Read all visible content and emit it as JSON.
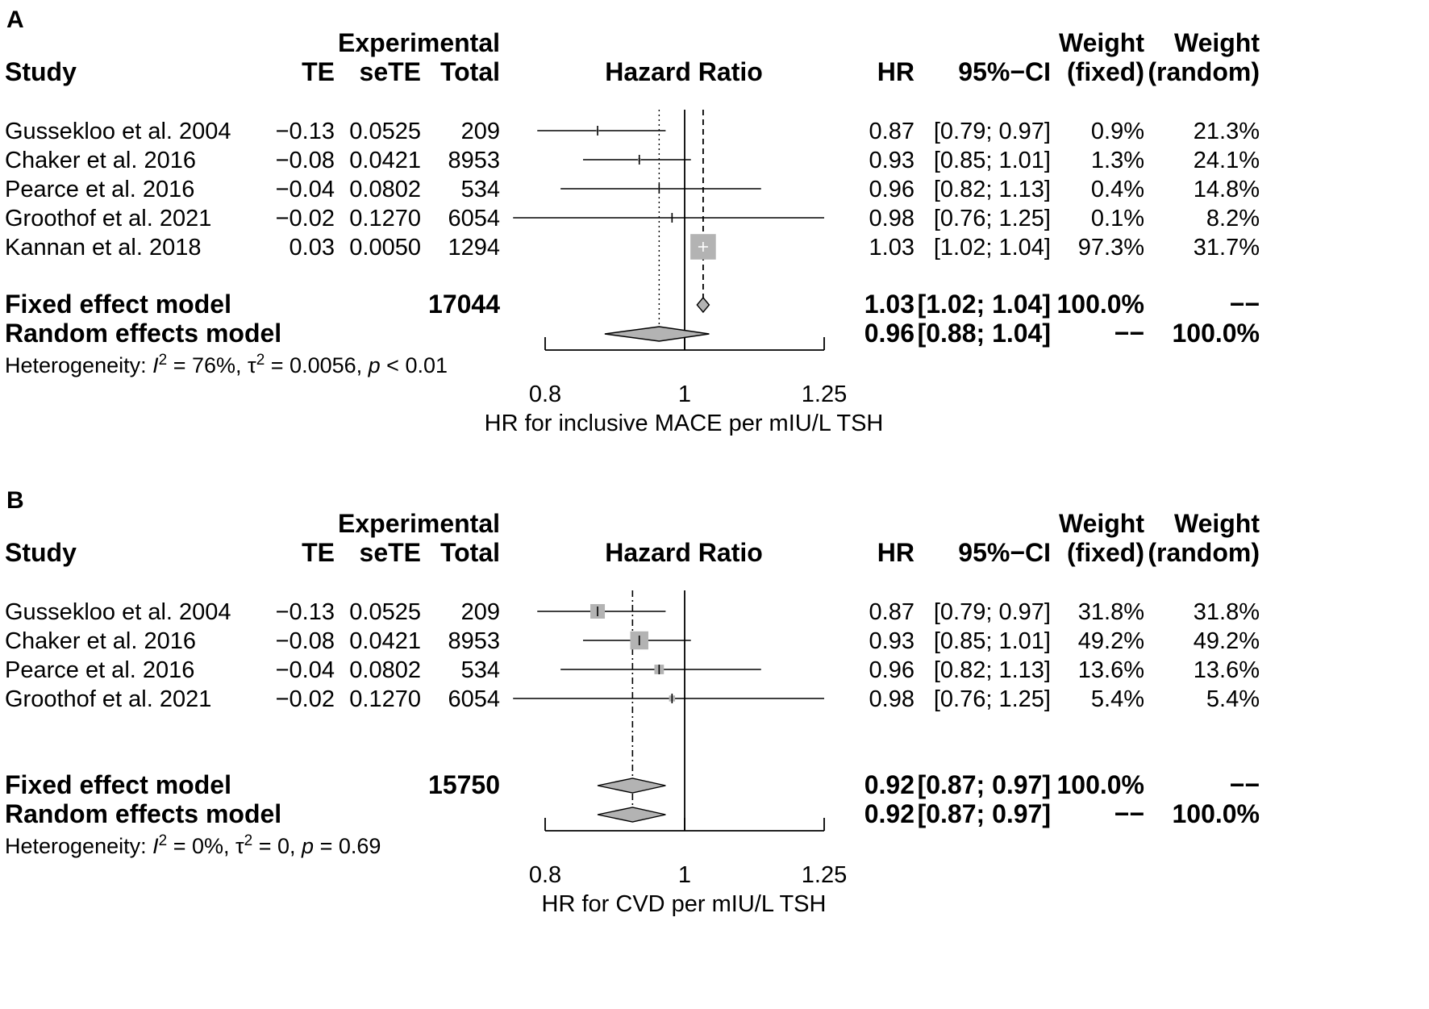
{
  "chart_data": [
    {
      "type": "forest",
      "panel": "A",
      "columns": {
        "study": "Study",
        "te": "TE",
        "sete": "seTE",
        "group": "Experimental",
        "total": "Total",
        "plot": "Hazard Ratio",
        "hr": "HR",
        "ci": "95%−CI",
        "weight_top": "Weight",
        "weight_fixed": "(fixed)",
        "weight_random": "(random)"
      },
      "studies": [
        {
          "name": "Gussekloo et al. 2004",
          "te": "−0.13",
          "sete": "0.0525",
          "total": "209",
          "hr_text": "0.87",
          "ci_text": "[0.79; 0.97]",
          "w_fixed": "0.9%",
          "w_random": "21.3%",
          "hr": 0.87,
          "lo": 0.79,
          "hi": 0.97,
          "weight": 0.009
        },
        {
          "name": "Chaker et al. 2016",
          "te": "−0.08",
          "sete": "0.0421",
          "total": "8953",
          "hr_text": "0.93",
          "ci_text": "[0.85; 1.01]",
          "w_fixed": "1.3%",
          "w_random": "24.1%",
          "hr": 0.93,
          "lo": 0.85,
          "hi": 1.01,
          "weight": 0.013
        },
        {
          "name": "Pearce et al. 2016",
          "te": "−0.04",
          "sete": "0.0802",
          "total": "534",
          "hr_text": "0.96",
          "ci_text": "[0.82; 1.13]",
          "w_fixed": "0.4%",
          "w_random": "14.8%",
          "hr": 0.96,
          "lo": 0.82,
          "hi": 1.13,
          "weight": 0.004
        },
        {
          "name": "Groothof et al.  2021",
          "te": "−0.02",
          "sete": "0.1270",
          "total": "6054",
          "hr_text": "0.98",
          "ci_text": "[0.76; 1.25]",
          "w_fixed": "0.1%",
          "w_random": "8.2%",
          "hr": 0.98,
          "lo": 0.76,
          "hi": 1.25,
          "weight": 0.001
        },
        {
          "name": "Kannan et al. 2018",
          "te": "0.03",
          "sete": "0.0050",
          "total": "1294",
          "hr_text": "1.03",
          "ci_text": "[1.02; 1.04]",
          "w_fixed": "97.3%",
          "w_random": "31.7%",
          "hr": 1.03,
          "lo": 1.02,
          "hi": 1.04,
          "weight": 0.973
        }
      ],
      "fixed": {
        "label": "Fixed effect model",
        "total": "17044",
        "hr_text": "1.03",
        "ci_text": "[1.02; 1.04]",
        "w_fixed": "100.0%",
        "w_random": "−−",
        "hr": 1.03,
        "lo": 1.02,
        "hi": 1.04
      },
      "random": {
        "label": "Random effects model",
        "hr_text": "0.96",
        "ci_text": "[0.88; 1.04]",
        "w_fixed": "−−",
        "w_random": "100.0%",
        "hr": 0.96,
        "lo": 0.88,
        "hi": 1.04
      },
      "heterogeneity": {
        "prefix": "Heterogeneity: ",
        "i2": "I",
        "i2_sup": "2",
        "i2_val": " = 76%, ",
        "tau": "τ",
        "tau_sup": "2",
        "tau_val": " = 0.0056, ",
        "p": "p",
        "p_val": " < 0.01"
      },
      "xscale": "log",
      "xlim": [
        0.8,
        1.25
      ],
      "xticks": [
        0.8,
        1,
        1.25
      ],
      "xtick_labels": [
        "0.8",
        "1",
        "1.25"
      ],
      "xlabel": "HR for inclusive MACE per mIU/L TSH",
      "ref_line": 1
    },
    {
      "type": "forest",
      "panel": "B",
      "columns": {
        "study": "Study",
        "te": "TE",
        "sete": "seTE",
        "group": "Experimental",
        "total": "Total",
        "plot": "Hazard Ratio",
        "hr": "HR",
        "ci": "95%−CI",
        "weight_top": "Weight",
        "weight_fixed": "(fixed)",
        "weight_random": "(random)"
      },
      "studies": [
        {
          "name": "Gussekloo et al. 2004",
          "te": "−0.13",
          "sete": "0.0525",
          "total": "209",
          "hr_text": "0.87",
          "ci_text": "[0.79; 0.97]",
          "w_fixed": "31.8%",
          "w_random": "31.8%",
          "hr": 0.87,
          "lo": 0.79,
          "hi": 0.97,
          "weight": 0.318
        },
        {
          "name": "Chaker et al. 2016",
          "te": "−0.08",
          "sete": "0.0421",
          "total": "8953",
          "hr_text": "0.93",
          "ci_text": "[0.85; 1.01]",
          "w_fixed": "49.2%",
          "w_random": "49.2%",
          "hr": 0.93,
          "lo": 0.85,
          "hi": 1.01,
          "weight": 0.492
        },
        {
          "name": "Pearce et al. 2016",
          "te": "−0.04",
          "sete": "0.0802",
          "total": "534",
          "hr_text": "0.96",
          "ci_text": "[0.82; 1.13]",
          "w_fixed": "13.6%",
          "w_random": "13.6%",
          "hr": 0.96,
          "lo": 0.82,
          "hi": 1.13,
          "weight": 0.136
        },
        {
          "name": "Groothof et al.  2021",
          "te": "−0.02",
          "sete": "0.1270",
          "total": "6054",
          "hr_text": "0.98",
          "ci_text": "[0.76; 1.25]",
          "w_fixed": "5.4%",
          "w_random": "5.4%",
          "hr": 0.98,
          "lo": 0.76,
          "hi": 1.25,
          "weight": 0.054
        }
      ],
      "fixed": {
        "label": "Fixed effect model",
        "total": "15750",
        "hr_text": "0.92",
        "ci_text": "[0.87; 0.97]",
        "w_fixed": "100.0%",
        "w_random": "−−",
        "hr": 0.92,
        "lo": 0.87,
        "hi": 0.97
      },
      "random": {
        "label": "Random effects model",
        "hr_text": "0.92",
        "ci_text": "[0.87; 0.97]",
        "w_fixed": "−−",
        "w_random": "100.0%",
        "hr": 0.92,
        "lo": 0.87,
        "hi": 0.97
      },
      "heterogeneity": {
        "prefix": "Heterogeneity: ",
        "i2": "I",
        "i2_sup": "2",
        "i2_val": " = 0%, ",
        "tau": "τ",
        "tau_sup": "2",
        "tau_val": " = 0, ",
        "p": "p",
        "p_val": " = 0.69"
      },
      "xscale": "log",
      "xlim": [
        0.8,
        1.25
      ],
      "xticks": [
        0.8,
        1,
        1.25
      ],
      "xtick_labels": [
        "0.8",
        "1",
        "1.25"
      ],
      "xlabel": "HR for CVD per mIU/L TSH",
      "ref_line": 1
    }
  ],
  "colors": {
    "square": "#b3b3b3",
    "diamond": "#b3b3b3",
    "line": "#000000"
  }
}
